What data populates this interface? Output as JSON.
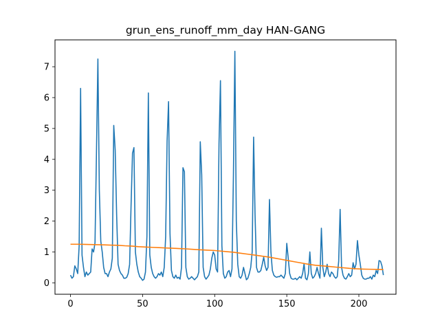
{
  "chart_data": {
    "type": "line",
    "title": "grun_ens_runoff_mm_day HAN-GANG",
    "xlabel": "",
    "ylabel": "",
    "xlim": [
      -10.75,
      225.75
    ],
    "ylim": [
      -0.37,
      7.87
    ],
    "xticks": [
      0,
      50,
      100,
      150,
      200
    ],
    "yticks": [
      0,
      1,
      2,
      3,
      4,
      5,
      6,
      7
    ],
    "grid": false,
    "colors": {
      "series1": "#1f77b4",
      "series2": "#ff7f0e"
    },
    "series": [
      {
        "values": [
          0.25,
          0.15,
          0.2,
          0.55,
          0.45,
          0.3,
          1.2,
          6.3,
          0.9,
          0.5,
          0.2,
          0.35,
          0.25,
          0.3,
          0.35,
          1.1,
          1.0,
          1.3,
          4.2,
          7.25,
          3.0,
          1.35,
          1.0,
          0.5,
          0.3,
          0.3,
          0.2,
          0.35,
          0.45,
          0.8,
          5.1,
          4.3,
          2.2,
          0.6,
          0.4,
          0.3,
          0.25,
          0.15,
          0.15,
          0.18,
          0.3,
          0.6,
          2.5,
          4.2,
          4.38,
          1.0,
          0.6,
          0.35,
          0.2,
          0.15,
          0.08,
          0.12,
          0.35,
          1.5,
          6.15,
          0.9,
          0.5,
          0.3,
          0.2,
          0.15,
          0.2,
          0.3,
          0.25,
          0.35,
          0.2,
          0.5,
          1.5,
          4.6,
          5.87,
          1.6,
          0.4,
          0.2,
          0.15,
          0.25,
          0.15,
          0.18,
          0.12,
          0.5,
          3.73,
          3.6,
          0.5,
          0.2,
          0.12,
          0.15,
          0.2,
          0.15,
          0.1,
          0.15,
          0.2,
          0.35,
          4.57,
          3.5,
          0.5,
          0.2,
          0.12,
          0.18,
          0.25,
          0.45,
          0.8,
          1.0,
          0.9,
          0.45,
          0.35,
          4.5,
          6.55,
          1.2,
          0.3,
          0.15,
          0.2,
          0.35,
          0.4,
          0.2,
          0.45,
          3.5,
          7.5,
          2.0,
          0.6,
          0.2,
          0.15,
          0.25,
          0.5,
          0.3,
          0.1,
          0.15,
          0.3,
          0.5,
          1.0,
          4.72,
          2.2,
          0.5,
          0.35,
          0.35,
          0.4,
          0.6,
          0.83,
          0.55,
          0.4,
          0.5,
          2.7,
          1.0,
          0.4,
          0.25,
          0.2,
          0.18,
          0.2,
          0.2,
          0.25,
          0.2,
          0.15,
          0.3,
          1.28,
          0.8,
          0.3,
          0.15,
          0.12,
          0.12,
          0.15,
          0.1,
          0.15,
          0.2,
          0.15,
          0.3,
          0.62,
          0.15,
          0.1,
          0.3,
          1.0,
          0.3,
          0.15,
          0.2,
          0.3,
          0.5,
          0.3,
          0.15,
          1.77,
          0.5,
          0.2,
          0.35,
          0.6,
          0.3,
          0.2,
          0.35,
          0.3,
          0.2,
          0.15,
          0.2,
          0.7,
          2.38,
          0.5,
          0.25,
          0.15,
          0.12,
          0.2,
          0.3,
          0.2,
          0.25,
          0.65,
          0.45,
          0.6,
          1.37,
          0.9,
          0.6,
          0.25,
          0.15,
          0.12,
          0.12,
          0.15,
          0.15,
          0.2,
          0.12,
          0.25,
          0.2,
          0.4,
          0.3,
          0.72,
          0.7,
          0.55,
          0.25
        ]
      },
      {
        "values": [
          1.25,
          1.25,
          1.245,
          1.24,
          1.235,
          1.23,
          1.22,
          1.215,
          1.2,
          1.19,
          1.17,
          1.16,
          1.15,
          1.14,
          1.13,
          1.12,
          1.11,
          1.1,
          1.085,
          1.07,
          1.06,
          1.05,
          1.03,
          1.01,
          0.99,
          0.96,
          0.93,
          0.9,
          0.87,
          0.84,
          0.8,
          0.76,
          0.72,
          0.68,
          0.64,
          0.6,
          0.57,
          0.55,
          0.53,
          0.51,
          0.49,
          0.47,
          0.455,
          0.445,
          0.44,
          0.435,
          0.43
        ]
      }
    ]
  }
}
